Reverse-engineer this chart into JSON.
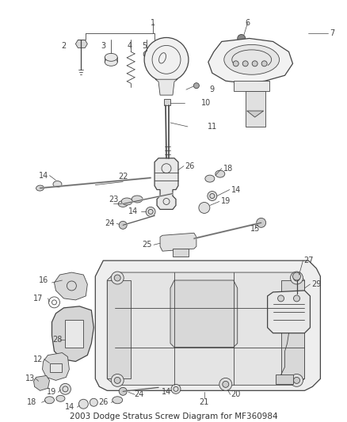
{
  "title": "2003 Dodge Stratus Screw Diagram for MF360984",
  "bg_color": "#ffffff",
  "line_color": "#444444",
  "label_color": "#333333",
  "font_size": 7.0,
  "title_font_size": 7.5,
  "figsize": [
    4.38,
    5.33
  ],
  "dpi": 100
}
